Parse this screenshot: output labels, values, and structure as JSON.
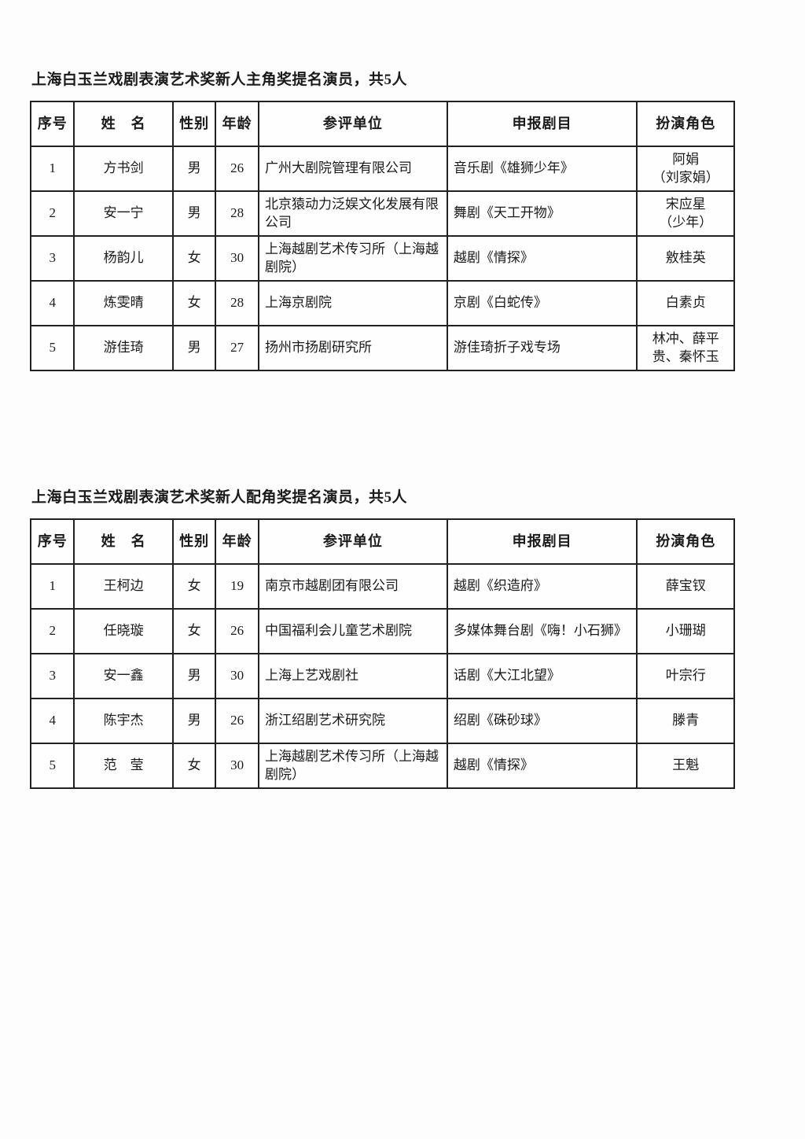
{
  "sections": [
    {
      "title": "上海白玉兰戏剧表演艺术奖新人主角奖提名演员，共5人",
      "headers": [
        "序号",
        "姓　名",
        "性别",
        "年龄",
        "参评单位",
        "申报剧目",
        "扮演角色"
      ],
      "rows": [
        [
          "1",
          "方书剑",
          "男",
          "26",
          "广州大剧院管理有限公司",
          "音乐剧《雄狮少年》",
          "阿娟\n（刘家娟）"
        ],
        [
          "2",
          "安一宁",
          "男",
          "28",
          "北京猿动力泛娱文化发展有限公司",
          "舞剧《天工开物》",
          "宋应星\n（少年）"
        ],
        [
          "3",
          "杨韵儿",
          "女",
          "30",
          "上海越剧艺术传习所（上海越剧院）",
          "越剧《情探》",
          "敫桂英"
        ],
        [
          "4",
          "炼雯晴",
          "女",
          "28",
          "上海京剧院",
          "京剧《白蛇传》",
          "白素贞"
        ],
        [
          "5",
          "游佳琦",
          "男",
          "27",
          "扬州市扬剧研究所",
          "游佳琦折子戏专场",
          "林冲、薛平贵、秦怀玉"
        ]
      ]
    },
    {
      "title": "上海白玉兰戏剧表演艺术奖新人配角奖提名演员，共5人",
      "headers": [
        "序号",
        "姓　名",
        "性别",
        "年龄",
        "参评单位",
        "申报剧目",
        "扮演角色"
      ],
      "rows": [
        [
          "1",
          "王柯边",
          "女",
          "19",
          "南京市越剧团有限公司",
          "越剧《织造府》",
          "薛宝钗"
        ],
        [
          "2",
          "任晓璇",
          "女",
          "26",
          "中国福利会儿童艺术剧院",
          "多媒体舞台剧《嗨！小石狮》",
          "小珊瑚"
        ],
        [
          "3",
          "安一鑫",
          "男",
          "30",
          "上海上艺戏剧社",
          "话剧《大江北望》",
          "叶宗行"
        ],
        [
          "4",
          "陈宇杰",
          "男",
          "26",
          "浙江绍剧艺术研究院",
          "绍剧《硃砂球》",
          "滕青"
        ],
        [
          "5",
          "范　莹",
          "女",
          "30",
          "上海越剧艺术传习所（上海越剧院）",
          "越剧《情探》",
          "王魁"
        ]
      ]
    }
  ]
}
